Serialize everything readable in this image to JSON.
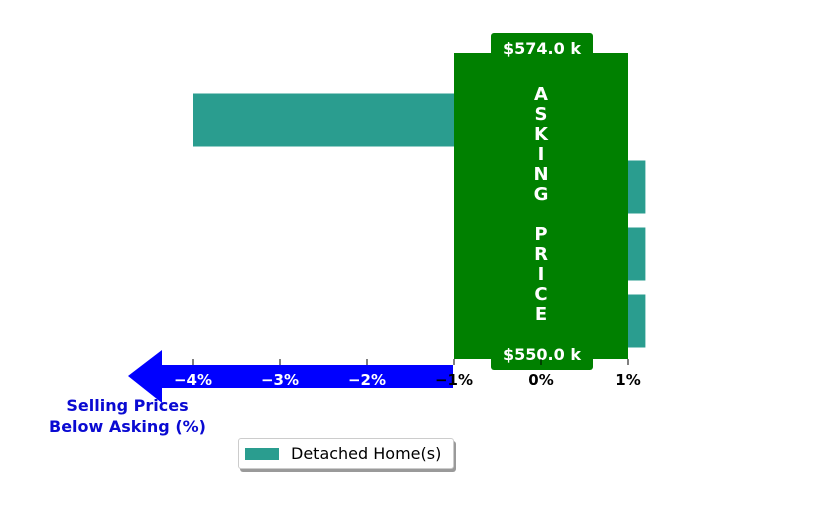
{
  "chart_data": {
    "type": "bar",
    "orientation": "horizontal",
    "series": [
      {
        "name": "Detached Home(s)",
        "values": [
          -4.0,
          1.2,
          1.2,
          1.2
        ]
      }
    ],
    "xlim": [
      -4.8,
      1.2
    ],
    "xticks": [
      {
        "value": -4,
        "label": "−4%"
      },
      {
        "value": -3,
        "label": "−3%"
      },
      {
        "value": -2,
        "label": "−2%"
      },
      {
        "value": -1,
        "label": "−1%"
      },
      {
        "value": 0,
        "label": "0%"
      },
      {
        "value": 1,
        "label": "1%"
      }
    ],
    "asking_price_box": {
      "x_from": -1,
      "x_to": 1,
      "vertical_text": "ASKING PRICE",
      "top_label": "$574.0 k",
      "bottom_label": "$550.0 k"
    },
    "legend": {
      "placement": "bottom-center"
    },
    "colors": {
      "bar": "#2a9d8f",
      "asking": "#008000",
      "arrow": "#0000ff",
      "caption": "#0a0ad2"
    }
  },
  "caption": {
    "line1": "Selling Prices",
    "line2": "Below Asking (%)"
  }
}
